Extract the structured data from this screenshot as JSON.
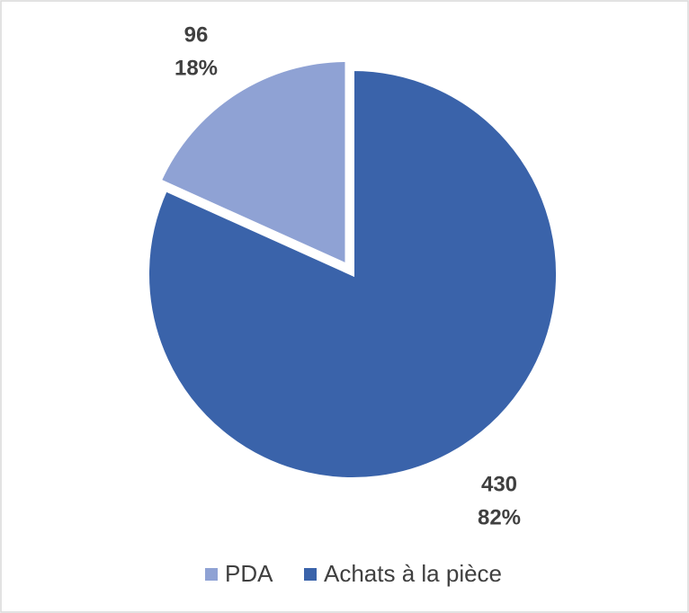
{
  "chart_data": {
    "type": "pie",
    "categories": [
      "PDA",
      "Achats à la pièce"
    ],
    "values": [
      96,
      430
    ],
    "percentages": [
      18,
      82
    ],
    "percentage_labels": [
      "18%",
      "82%"
    ],
    "colors": [
      "#8fa2d4",
      "#3a63aa"
    ],
    "legend": "bottom"
  }
}
